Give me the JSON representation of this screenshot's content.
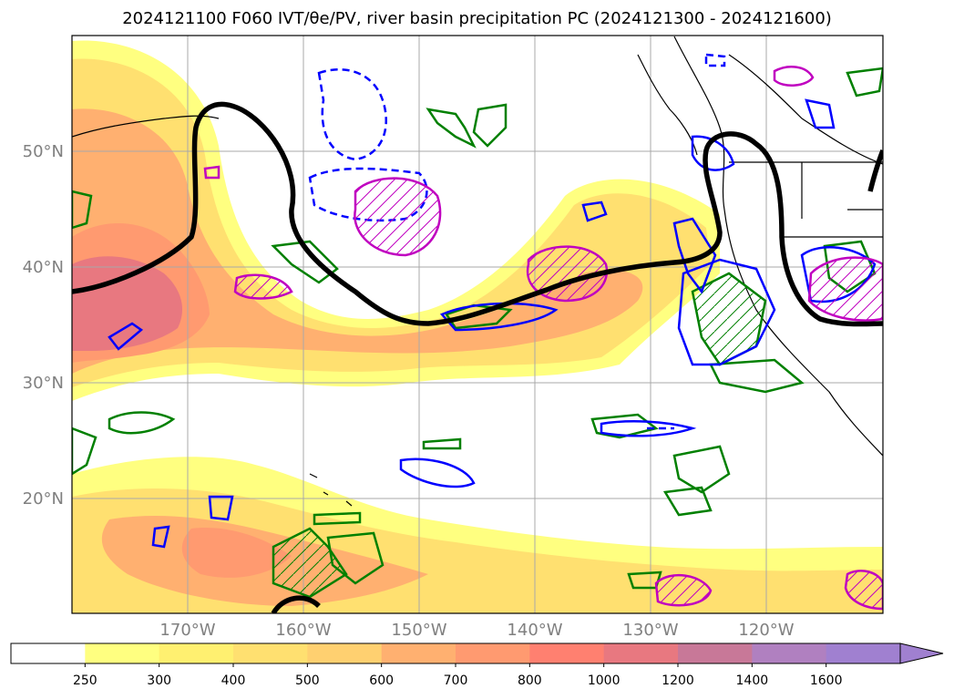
{
  "title": "2024121100 F060 IVT/θe/PV, river basin precipitation PC (2024121300 - 2024121600)",
  "map": {
    "lat_labels": [
      "50°N",
      "40°N",
      "30°N",
      "20°N"
    ],
    "lon_labels": [
      "170°W",
      "160°W",
      "150°W",
      "140°W",
      "130°W",
      "120°W"
    ],
    "extent": {
      "lon": [
        -180,
        -110
      ],
      "lat": [
        10,
        60
      ]
    }
  },
  "colorbar": {
    "levels": [
      "250",
      "300",
      "400",
      "500",
      "600",
      "700",
      "800",
      "1000",
      "1200",
      "1400",
      "1600"
    ],
    "colors": [
      "#ffffff",
      "#ffff80",
      "#fff070",
      "#ffe070",
      "#ffd070",
      "#ffb070",
      "#ff9a70",
      "#ff8070",
      "#e87880",
      "#c87898",
      "#b080c0",
      "#a080d0"
    ],
    "extend": "max"
  },
  "colors": {
    "ivt_high": "#e87880",
    "pv_contour": "#000000",
    "theta_e_positive": "#0000ff",
    "green_contour": "#008000",
    "magenta_contour": "#c000c0"
  }
}
